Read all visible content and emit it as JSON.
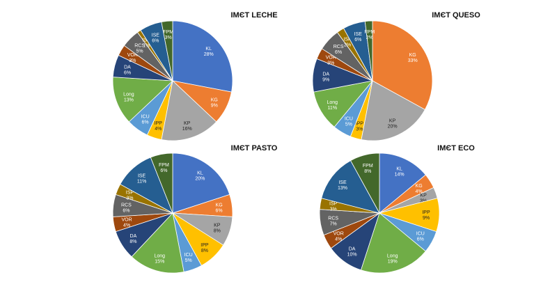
{
  "colors": {
    "KL": "#4472C4",
    "KG": "#ED7D31",
    "KP": "#A5A5A5",
    "IPP": "#FFC000",
    "ICU": "#5B9BD5",
    "Long": "#70AD47",
    "DA": "#264478",
    "VOR": "#9E480E",
    "RCS": "#636363",
    "ISP": "#997300",
    "ISE": "#255E91",
    "FPM": "#43682B"
  },
  "chart_data": [
    {
      "type": "pie",
      "title": "IMЄT LECHE",
      "slices": [
        {
          "label": "KL",
          "value": 28,
          "text": "28%"
        },
        {
          "label": "KG",
          "value": 9,
          "text": "9%"
        },
        {
          "label": "KP",
          "value": 16,
          "text": "16%"
        },
        {
          "label": "IPP",
          "value": 4,
          "text": "4%"
        },
        {
          "label": "ICU",
          "value": 6,
          "text": "6%"
        },
        {
          "label": "Long",
          "value": 13,
          "text": "13%"
        },
        {
          "label": "DA",
          "value": 6,
          "text": "6%"
        },
        {
          "label": "VOR",
          "value": 3,
          "text": "3%"
        },
        {
          "label": "RCS",
          "value": 5,
          "text": "5%"
        },
        {
          "label": "ISP",
          "value": 1,
          "text": "1%"
        },
        {
          "label": "ISE",
          "value": 6,
          "text": "6%"
        },
        {
          "label": "FPM",
          "value": 3,
          "text": "3%"
        }
      ]
    },
    {
      "type": "pie",
      "title": "IMЄT QUESO",
      "slices": [
        {
          "label": "KG",
          "value": 33,
          "text": "33%"
        },
        {
          "label": "KP",
          "value": 20,
          "text": "20%"
        },
        {
          "label": "IPP",
          "value": 3,
          "text": "3%"
        },
        {
          "label": "ICU",
          "value": 5,
          "text": "5%"
        },
        {
          "label": "Long",
          "value": 11,
          "text": "11%"
        },
        {
          "label": "DA",
          "value": 9,
          "text": "9%"
        },
        {
          "label": "VOR",
          "value": 3,
          "text": "3%"
        },
        {
          "label": "RCS",
          "value": 6,
          "text": "6%"
        },
        {
          "label": "ISP",
          "value": 2,
          "text": "2%"
        },
        {
          "label": "ISE",
          "value": 6,
          "text": "6%"
        },
        {
          "label": "FPM",
          "value": 2,
          "text": "2%"
        }
      ]
    },
    {
      "type": "pie",
      "title": "IMЄT PASTO",
      "slices": [
        {
          "label": "KL",
          "value": 20,
          "text": "20%"
        },
        {
          "label": "KG",
          "value": 6,
          "text": "6%"
        },
        {
          "label": "KP",
          "value": 8,
          "text": "8%"
        },
        {
          "label": "IPP",
          "value": 8,
          "text": "8%"
        },
        {
          "label": "ICU",
          "value": 5,
          "text": "5%"
        },
        {
          "label": "Long",
          "value": 15,
          "text": "15%"
        },
        {
          "label": "DA",
          "value": 8,
          "text": "8%"
        },
        {
          "label": "VOR",
          "value": 4,
          "text": "4%"
        },
        {
          "label": "RCS",
          "value": 6,
          "text": "6%"
        },
        {
          "label": "ISP",
          "value": 3,
          "text": "3%"
        },
        {
          "label": "ISE",
          "value": 11,
          "text": "11%"
        },
        {
          "label": "FPM",
          "value": 6,
          "text": "6%"
        }
      ]
    },
    {
      "type": "pie",
      "title": "IMЄT ECO",
      "slices": [
        {
          "label": "KL",
          "value": 14,
          "text": "14%"
        },
        {
          "label": "KG",
          "value": 4,
          "text": "4%"
        },
        {
          "label": "KP",
          "value": 3,
          "text": "3%"
        },
        {
          "label": "IPP",
          "value": 9,
          "text": "9%"
        },
        {
          "label": "ICU",
          "value": 6,
          "text": "6%"
        },
        {
          "label": "Long",
          "value": 19,
          "text": "19%"
        },
        {
          "label": "DA",
          "value": 10,
          "text": "10%"
        },
        {
          "label": "VOR",
          "value": 4,
          "text": "4%"
        },
        {
          "label": "RCS",
          "value": 7,
          "text": "7%"
        },
        {
          "label": "ISP",
          "value": 3,
          "text": "3%"
        },
        {
          "label": "ISE",
          "value": 13,
          "text": "13%"
        },
        {
          "label": "FPM",
          "value": 8,
          "text": "8%"
        }
      ]
    }
  ]
}
